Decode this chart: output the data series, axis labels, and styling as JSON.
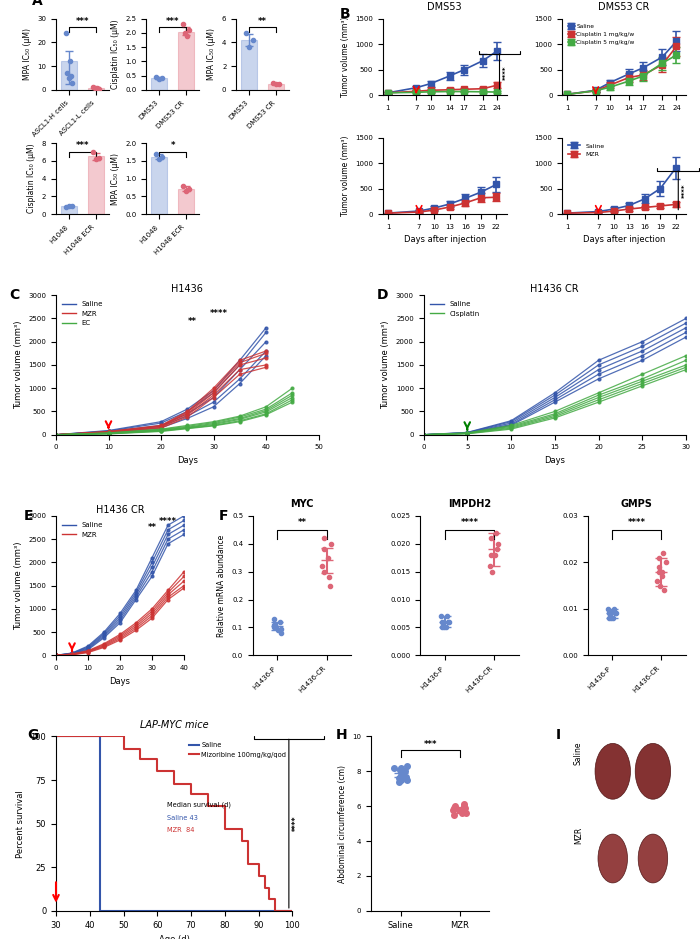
{
  "panel_A": {
    "bar1": {
      "categories": [
        "ASCL1-H cells",
        "ASCL1-L cells"
      ],
      "values": [
        12,
        0.8
      ],
      "colors": [
        "#6688cc",
        "#dd6677"
      ],
      "ylabel": "MPA IC₅₀ (μM)",
      "ylim": [
        0,
        30
      ],
      "yticks": [
        0,
        10,
        20,
        30
      ],
      "sig": "***",
      "dots_blue": [
        24,
        7,
        5,
        12,
        6,
        3
      ],
      "dots_red": [
        1.2,
        0.6,
        0.8,
        0.5
      ]
    },
    "bar2": {
      "categories": [
        "DMS53",
        "DMS53 CR"
      ],
      "values": [
        0.4,
        2.05
      ],
      "colors": [
        "#6688cc",
        "#dd6677"
      ],
      "ylabel": "Cisplatin IC₅₀ (μM)",
      "ylim": [
        0,
        2.5
      ],
      "yticks": [
        0.0,
        0.5,
        1.0,
        1.5,
        2.0,
        2.5
      ],
      "sig": "***",
      "dots_blue": [
        0.45,
        0.38,
        0.42
      ],
      "dots_red": [
        2.3,
        2.0,
        1.9,
        2.1
      ]
    },
    "bar3": {
      "categories": [
        "DMS53",
        "DMS53 CR"
      ],
      "values": [
        4.2,
        0.5
      ],
      "colors": [
        "#6688cc",
        "#dd6677"
      ],
      "ylabel": "MPA IC₅₀ (μM)",
      "ylim": [
        0,
        6
      ],
      "yticks": [
        0,
        2,
        4,
        6
      ],
      "sig": "**",
      "dots_blue": [
        4.8,
        3.6,
        4.2
      ],
      "dots_red": [
        0.6,
        0.45,
        0.5
      ]
    },
    "bar4": {
      "categories": [
        "H1048",
        "H1048 ECR"
      ],
      "values": [
        0.9,
        6.5
      ],
      "colors": [
        "#6688cc",
        "#dd6677"
      ],
      "ylabel": "Cisplatin IC₅₀ (μM)",
      "ylim": [
        0,
        8
      ],
      "yticks": [
        0,
        2,
        4,
        6,
        8
      ],
      "sig": "***",
      "dots_blue": [
        0.85,
        0.9,
        0.95
      ],
      "dots_red": [
        7.0,
        6.2,
        6.3
      ]
    },
    "bar5": {
      "categories": [
        "H1048",
        "H1048 ECR"
      ],
      "values": [
        1.6,
        0.7
      ],
      "colors": [
        "#6688cc",
        "#dd6677"
      ],
      "ylabel": "MPA IC₅₀ (μM)",
      "ylim": [
        0,
        2.0
      ],
      "yticks": [
        0.0,
        0.5,
        1.0,
        1.5,
        2.0
      ],
      "sig": "*",
      "dots_blue": [
        1.7,
        1.55,
        1.6
      ],
      "dots_red": [
        0.8,
        0.65,
        0.7
      ]
    }
  },
  "panel_B": {
    "dms53_cisplatin": {
      "title": "DMS53",
      "days": [
        1,
        7,
        10,
        14,
        17,
        21,
        24
      ],
      "saline_mean": [
        50,
        150,
        230,
        380,
        500,
        680,
        870
      ],
      "saline_err": [
        20,
        40,
        60,
        80,
        100,
        130,
        170
      ],
      "cis1_mean": [
        50,
        80,
        100,
        110,
        120,
        130,
        200
      ],
      "cis1_err": [
        20,
        20,
        25,
        25,
        30,
        35,
        60
      ],
      "cis5_mean": [
        50,
        60,
        70,
        75,
        75,
        70,
        65
      ],
      "cis5_err": [
        15,
        15,
        15,
        15,
        15,
        15,
        15
      ],
      "sig": "****",
      "arrow_day": 7,
      "ylim": [
        0,
        1500
      ]
    },
    "dms53cr_cisplatin": {
      "title": "DMS53 CR",
      "days": [
        1,
        7,
        10,
        14,
        17,
        21,
        24
      ],
      "saline_mean": [
        20,
        100,
        250,
        420,
        540,
        750,
        1060
      ],
      "saline_err": [
        10,
        30,
        60,
        90,
        120,
        150,
        200
      ],
      "cis1_mean": [
        20,
        90,
        200,
        350,
        400,
        600,
        960
      ],
      "cis1_err": [
        10,
        25,
        55,
        80,
        100,
        140,
        180
      ],
      "cis5_mean": [
        20,
        90,
        160,
        280,
        380,
        630,
        790
      ],
      "cis5_err": [
        10,
        25,
        45,
        70,
        90,
        130,
        160
      ],
      "arrow_day": 7,
      "ylim": [
        0,
        1500
      ]
    },
    "dms53_mzr": {
      "days": [
        1,
        7,
        10,
        13,
        16,
        19,
        22
      ],
      "saline_mean": [
        20,
        60,
        120,
        200,
        310,
        430,
        580
      ],
      "saline_err": [
        10,
        20,
        35,
        55,
        80,
        110,
        140
      ],
      "mzr_mean": [
        20,
        40,
        80,
        140,
        220,
        320,
        330
      ],
      "mzr_err": [
        10,
        15,
        25,
        40,
        60,
        90,
        80
      ],
      "arrow_day": 7,
      "ylim": [
        0,
        1500
      ]
    },
    "dms53cr_mzr": {
      "days": [
        1,
        7,
        10,
        13,
        16,
        19,
        22
      ],
      "saline_mean": [
        20,
        50,
        100,
        170,
        300,
        500,
        900
      ],
      "saline_err": [
        10,
        15,
        30,
        50,
        90,
        140,
        220
      ],
      "mzr_mean": [
        20,
        30,
        60,
        100,
        130,
        160,
        190
      ],
      "mzr_err": [
        10,
        10,
        20,
        30,
        35,
        40,
        50
      ],
      "sig": "****",
      "arrow_day": 7,
      "ylim": [
        0,
        1500
      ]
    },
    "xlabel": "Days after injection",
    "ylabel": "Tumor volume (mm³)"
  },
  "panel_C": {
    "title": "H1436",
    "ylim": [
      0,
      3000
    ],
    "xlim": [
      0,
      50
    ],
    "ylabel": "Tumor volume (mm³)"
  },
  "panel_D": {
    "title": "H1436 CR",
    "ylim": [
      0,
      3000
    ],
    "xlim": [
      0,
      30
    ],
    "ylabel": "Tumor volume (mm³)"
  },
  "panel_E": {
    "title": "H1436 CR",
    "ylim": [
      0,
      3000
    ],
    "xlim": [
      0,
      40
    ],
    "ylabel": "Tumor volume (mm³)"
  },
  "panel_F": {
    "MYC": {
      "title": "MYC",
      "p_dots": [
        0.1,
        0.08,
        0.12,
        0.09,
        0.11,
        0.13,
        0.1,
        0.095
      ],
      "cr_dots": [
        0.35,
        0.28,
        0.32,
        0.4,
        0.25,
        0.38,
        0.42,
        0.3
      ],
      "p_mean": 0.105,
      "cr_mean": 0.34,
      "p_err": 0.015,
      "cr_err": 0.045,
      "sig": "**",
      "ylim": [
        0,
        0.5
      ],
      "yticks": [
        0.0,
        0.1,
        0.2,
        0.3,
        0.4,
        0.5
      ]
    },
    "IMPDH2": {
      "title": "IMPDH2",
      "p_dots": [
        0.005,
        0.006,
        0.007,
        0.005,
        0.006,
        0.005,
        0.007,
        0.006
      ],
      "cr_dots": [
        0.018,
        0.022,
        0.016,
        0.02,
        0.019,
        0.015,
        0.021,
        0.018
      ],
      "p_mean": 0.006,
      "cr_mean": 0.019,
      "p_err": 0.001,
      "cr_err": 0.003,
      "sig": "****",
      "ylim": [
        0,
        0.025
      ],
      "yticks": [
        0.0,
        0.005,
        0.01,
        0.015,
        0.02,
        0.025
      ]
    },
    "GMPS": {
      "title": "GMPS",
      "p_dots": [
        0.008,
        0.009,
        0.01,
        0.008,
        0.009,
        0.008,
        0.01,
        0.009
      ],
      "cr_dots": [
        0.018,
        0.022,
        0.016,
        0.02,
        0.014,
        0.019,
        0.021,
        0.018,
        0.015,
        0.017
      ],
      "p_mean": 0.009,
      "cr_mean": 0.018,
      "p_err": 0.001,
      "cr_err": 0.003,
      "sig": "****",
      "ylim": [
        0,
        0.03
      ],
      "yticks": [
        0.0,
        0.01,
        0.02,
        0.03
      ]
    },
    "ylabel": "Relative mRNA abundance",
    "xlabel_p": "H1436-P",
    "xlabel_cr": "H1436-CR"
  },
  "panel_G": {
    "title": "LAP-MYC mice",
    "median_saline": 43,
    "median_mzr": 84,
    "sig": "****",
    "xlabel": "Age (d)",
    "ylabel": "Percent survival",
    "xlim": [
      30,
      100
    ],
    "ylim": [
      0,
      100
    ],
    "yticks": [
      0,
      25,
      50,
      75,
      100
    ],
    "xticks": [
      30,
      40,
      50,
      60,
      70,
      80,
      90,
      100
    ]
  },
  "panel_H": {
    "ylabel": "Abdominal circumference (cm)",
    "saline_dots": [
      7.5,
      8.0,
      7.8,
      8.2,
      7.6,
      7.9,
      8.1,
      7.7,
      8.3,
      7.4,
      8.0,
      7.8,
      8.1,
      7.5,
      8.2
    ],
    "mzr_dots": [
      5.5,
      5.8,
      6.0,
      5.7,
      5.9,
      5.6,
      6.1,
      5.8,
      5.7,
      5.9,
      5.6,
      6.0
    ],
    "saline_mean": 7.9,
    "mzr_mean": 5.8,
    "saline_err": 0.25,
    "mzr_err": 0.18,
    "sig": "***",
    "ylim": [
      0,
      10
    ],
    "yticks": [
      0,
      2,
      4,
      6,
      8,
      10
    ]
  },
  "colors": {
    "blue": "#3355aa",
    "red": "#cc3333",
    "green": "#44aa44",
    "light_blue": "#6688cc",
    "light_red": "#dd6677"
  }
}
